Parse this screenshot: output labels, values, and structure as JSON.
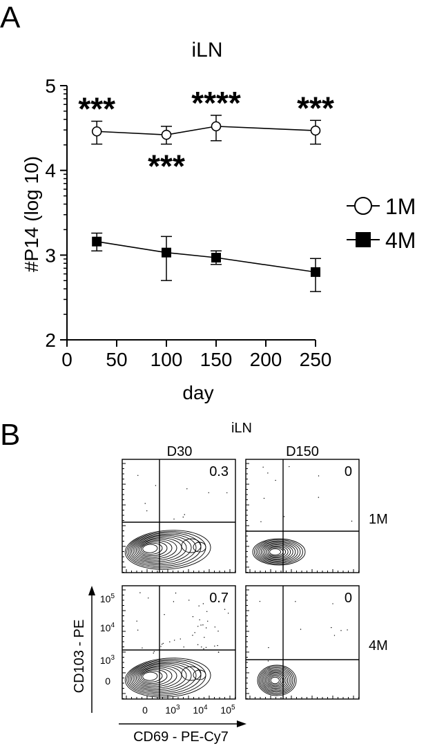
{
  "panels": {
    "a_label": "A",
    "b_label": "B"
  },
  "chart_data": [
    {
      "type": "line",
      "title": "iLN",
      "xlabel": "day",
      "ylabel": "#P14 (log 10)",
      "xlim": [
        0,
        250
      ],
      "ylim": [
        2,
        5
      ],
      "x_ticks": [
        "0",
        "50",
        "100",
        "150",
        "200",
        "250"
      ],
      "y_ticks": [
        "2",
        "3",
        "4",
        "5"
      ],
      "legend_position": "right",
      "series": [
        {
          "name": "1M",
          "marker": "open-circle",
          "x": [
            30,
            100,
            150,
            250
          ],
          "y": [
            4.46,
            4.42,
            4.52,
            4.47
          ],
          "err_low": [
            4.31,
            4.31,
            4.35,
            4.31
          ],
          "err_high": [
            4.58,
            4.52,
            4.65,
            4.59
          ]
        },
        {
          "name": "4M",
          "marker": "filled-square",
          "x": [
            30,
            100,
            150,
            250
          ],
          "y": [
            3.16,
            3.03,
            2.97,
            2.8
          ],
          "err_low": [
            3.05,
            2.7,
            2.89,
            2.57
          ],
          "err_high": [
            3.26,
            3.22,
            3.05,
            2.96
          ]
        }
      ],
      "annotations": [
        {
          "x": 30,
          "text": "***",
          "position": "above"
        },
        {
          "x": 100,
          "text": "***",
          "position": "below"
        },
        {
          "x": 150,
          "text": "****",
          "position": "above"
        },
        {
          "x": 250,
          "text": "***",
          "position": "above"
        }
      ]
    },
    {
      "type": "contour",
      "title": "iLN",
      "columns": [
        "D30",
        "D150"
      ],
      "rows": [
        "1M",
        "4M"
      ],
      "quadrant_values": [
        [
          "0.3",
          "0"
        ],
        [
          "0.7",
          "0"
        ]
      ],
      "xlabel": "CD69 - PE-Cy7",
      "ylabel": "CD103 - PE",
      "x_ticks": [
        "0",
        "10",
        "10",
        "10"
      ],
      "x_tick_exponents": [
        "",
        "3",
        "4",
        "5"
      ],
      "y_ticks": [
        "0",
        "10",
        "10",
        "10"
      ],
      "y_tick_exponents": [
        "",
        "3",
        "4",
        "5"
      ]
    }
  ]
}
